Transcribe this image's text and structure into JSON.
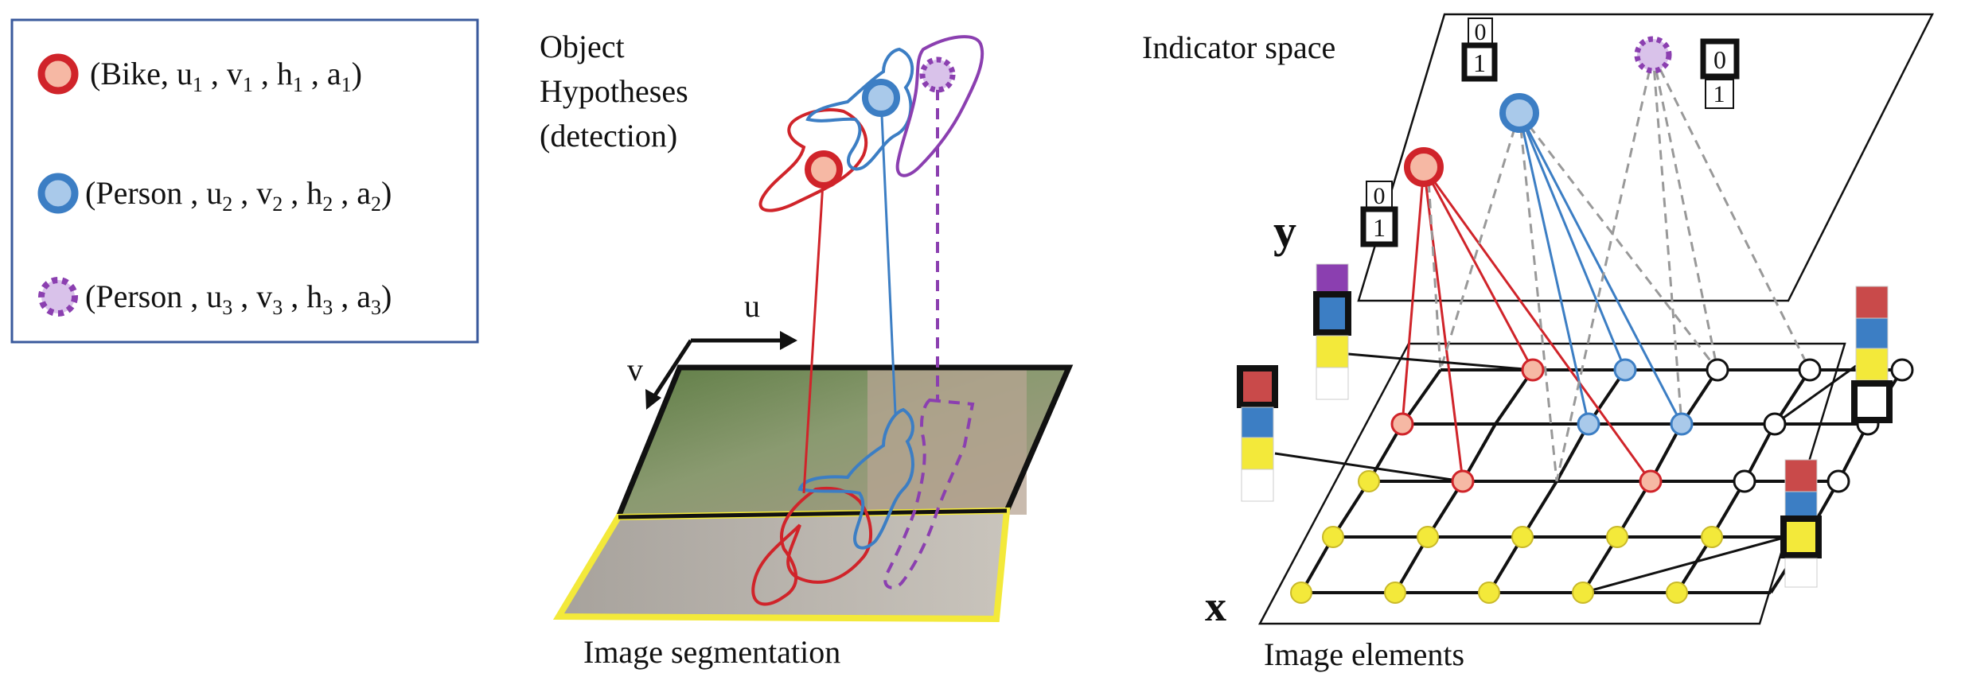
{
  "legend": {
    "items": [
      {
        "name": "Bike",
        "index": "1",
        "marker": "red-filled"
      },
      {
        "name": "Person",
        "index": "2",
        "marker": "blue-filled"
      },
      {
        "name": "Person",
        "index": "3",
        "marker": "purple-dashed"
      }
    ],
    "params": [
      "u",
      "v",
      "h",
      "a"
    ]
  },
  "labels": {
    "object_hypotheses": [
      "Object",
      "Hypotheses",
      "(detection)"
    ],
    "indicator_space": "Indicator space",
    "image_segmentation": "Image segmentation",
    "image_elements": "Image elements",
    "axis_u": "u",
    "axis_v": "v",
    "y": "y",
    "x": "x"
  },
  "indicators": {
    "zero": "0",
    "one": "1"
  },
  "colors": {
    "bike": "#d0242a",
    "bike_fill": "#f6b8a4",
    "person": "#3c7ec4",
    "person_fill": "#a9c9ea",
    "person3": "#8b3fb0",
    "person3_fill": "#d9c2ea",
    "element": "#f3e93a",
    "frame": "#3a5a9c",
    "dashed": "#999999"
  }
}
